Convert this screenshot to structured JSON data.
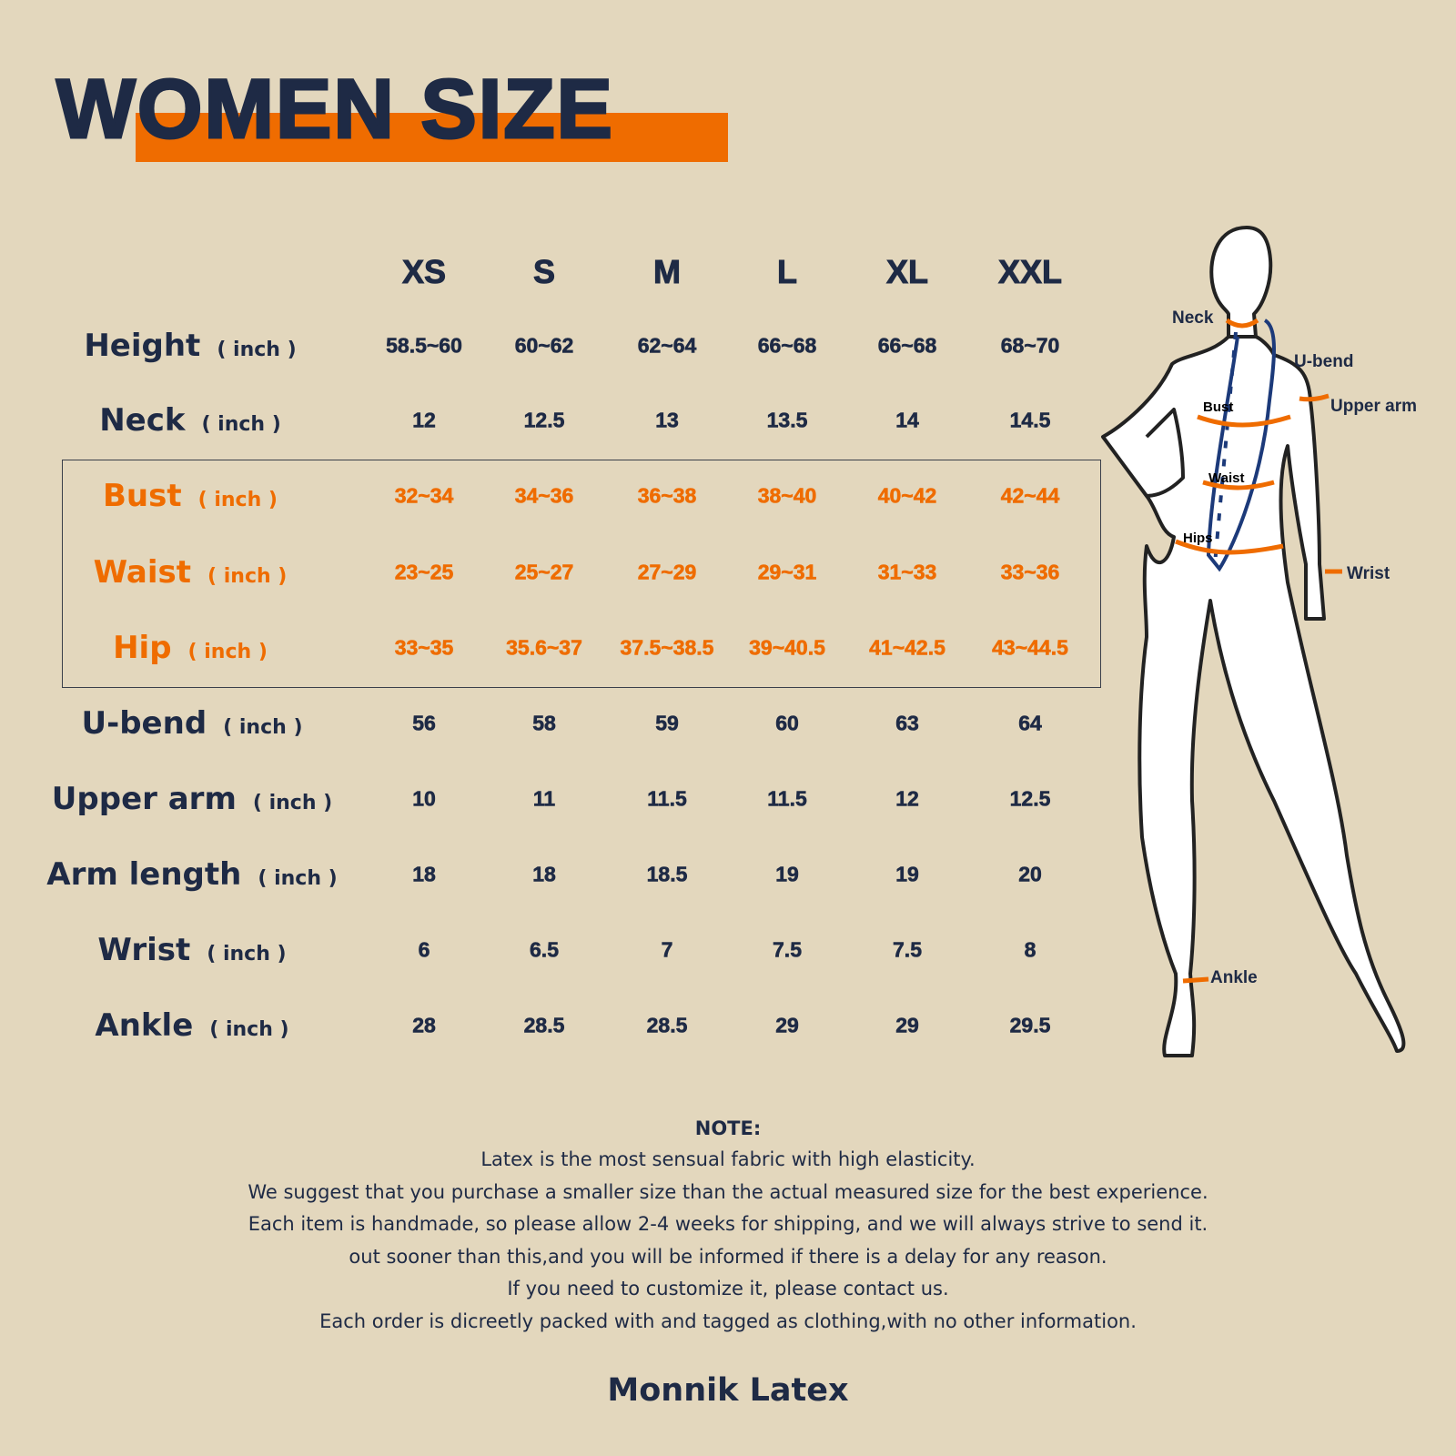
{
  "title": "WOMEN SIZE",
  "colors": {
    "background": "#e3d7bd",
    "navy": "#1e2a45",
    "accent": "#ef6c00"
  },
  "sizes": [
    "XS",
    "S",
    "M",
    "L",
    "XL",
    "XXL"
  ],
  "unit": "( inch )",
  "rows": [
    {
      "label": "Height",
      "highlight": false,
      "values": [
        "58.5~60",
        "60~62",
        "62~64",
        "66~68",
        "66~68",
        "68~70"
      ]
    },
    {
      "label": "Neck",
      "highlight": false,
      "values": [
        "12",
        "12.5",
        "13",
        "13.5",
        "14",
        "14.5"
      ]
    },
    {
      "label": "Bust",
      "highlight": true,
      "values": [
        "32~34",
        "34~36",
        "36~38",
        "38~40",
        "40~42",
        "42~44"
      ]
    },
    {
      "label": "Waist",
      "highlight": true,
      "values": [
        "23~25",
        "25~27",
        "27~29",
        "29~31",
        "31~33",
        "33~36"
      ]
    },
    {
      "label": "Hip",
      "highlight": true,
      "values": [
        "33~35",
        "35.6~37",
        "37.5~38.5",
        "39~40.5",
        "41~42.5",
        "43~44.5"
      ]
    },
    {
      "label": "U-bend",
      "highlight": false,
      "values": [
        "56",
        "58",
        "59",
        "60",
        "63",
        "64"
      ]
    },
    {
      "label": "Upper arm",
      "highlight": false,
      "values": [
        "10",
        "11",
        "11.5",
        "11.5",
        "12",
        "12.5"
      ]
    },
    {
      "label": "Arm length",
      "highlight": false,
      "values": [
        "18",
        "18",
        "18.5",
        "19",
        "19",
        "20"
      ]
    },
    {
      "label": "Wrist",
      "highlight": false,
      "values": [
        "6",
        "6.5",
        "7",
        "7.5",
        "7.5",
        "8"
      ]
    },
    {
      "label": "Ankle",
      "highlight": false,
      "values": [
        "28",
        "28.5",
        "28.5",
        "29",
        "29",
        "29.5"
      ]
    }
  ],
  "figure_labels": {
    "neck": "Neck",
    "ubend": "U-bend",
    "upper_arm": "Upper arm",
    "bust": "Bust",
    "waist": "Waist",
    "hips": "Hips",
    "wrist": "Wrist",
    "ankle": "Ankle"
  },
  "note": {
    "heading": "NOTE:",
    "lines": [
      "Latex is the most sensual fabric with high elasticity.",
      "We suggest that you purchase a smaller size than the actual measured size for the best experience.",
      "Each item is handmade, so please allow 2-4 weeks for shipping, and we will always strive to send it.",
      "out sooner than this,and you will be informed if there is a delay for any reason.",
      "If you need to customize it, please contact us.",
      "Each order is dicreetly packed with and tagged as clothing,with no other information."
    ]
  },
  "brand": "Monnik Latex"
}
